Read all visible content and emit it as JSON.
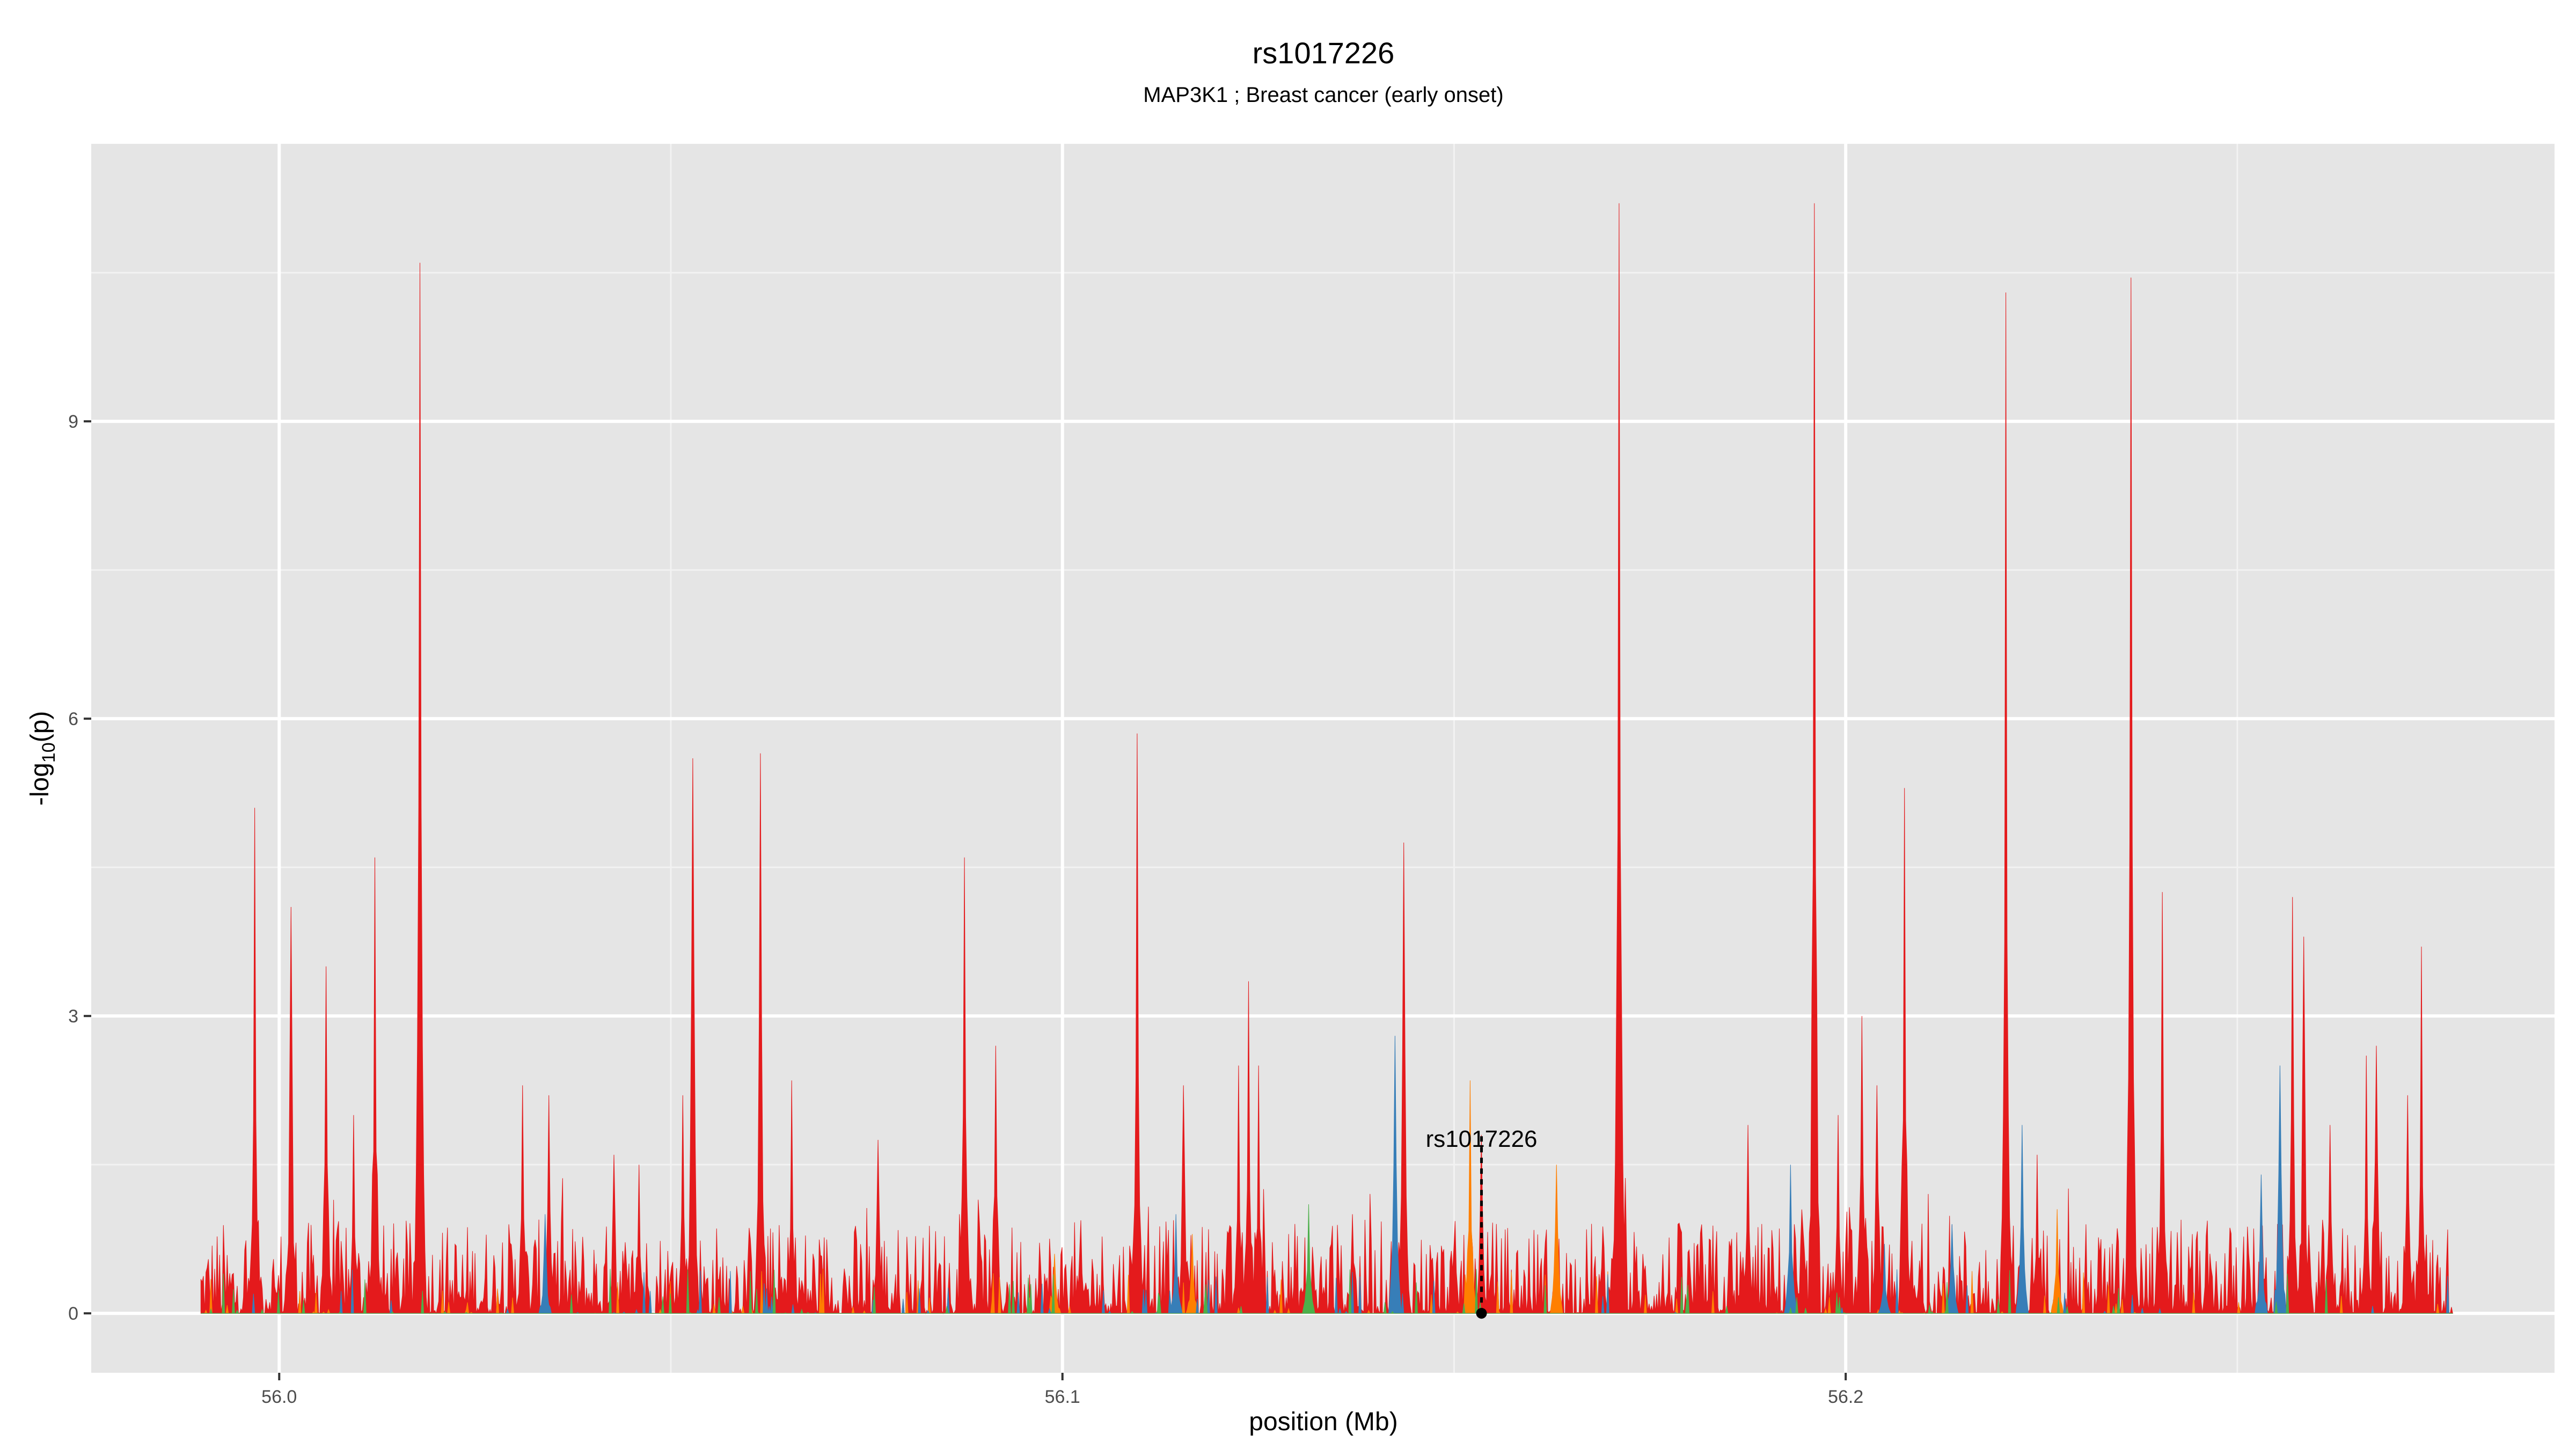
{
  "chart_data": {
    "type": "area",
    "title": "rs1017226",
    "subtitle": "MAP3K1 ; Breast cancer (early onset)",
    "xlabel": "position (Mb)",
    "ylabel_base": "-log",
    "ylabel_sub": "10",
    "ylabel_tail": "(p)",
    "xlim": [
      55.976,
      56.2905
    ],
    "ylim": [
      -0.6,
      11.8
    ],
    "x_ticks": [
      56.0,
      56.1,
      56.2
    ],
    "x_tick_labels": [
      "56.0",
      "56.1",
      "56.2"
    ],
    "x_minor_ticks": [
      56.05,
      56.15,
      56.25
    ],
    "y_ticks": [
      0,
      3,
      6,
      9
    ],
    "y_tick_labels": [
      "0",
      "3",
      "6",
      "9"
    ],
    "y_minor_ticks": [
      1.5,
      4.5,
      7.5,
      10.5
    ],
    "x_range": [
      55.99,
      56.2775
    ],
    "grid": true,
    "background_color": "#e5e5e5",
    "series": [
      {
        "color": "#e41a1c",
        "peaks": [
          [
            55.9968,
            5.1
          ],
          [
            56.0015,
            4.1
          ],
          [
            56.006,
            3.5
          ],
          [
            56.0095,
            2.0
          ],
          [
            56.0122,
            4.6
          ],
          [
            56.018,
            10.6
          ],
          [
            56.031,
            2.3
          ],
          [
            56.0345,
            2.2
          ],
          [
            56.0427,
            1.6
          ],
          [
            56.046,
            1.5
          ],
          [
            56.0515,
            2.2
          ],
          [
            56.0528,
            5.6
          ],
          [
            56.0615,
            5.65
          ],
          [
            56.0655,
            2.35
          ],
          [
            56.0765,
            1.75
          ],
          [
            56.0875,
            4.6
          ],
          [
            56.0915,
            2.7
          ],
          [
            56.1095,
            5.85
          ],
          [
            56.1155,
            2.3
          ],
          [
            56.1225,
            2.5
          ],
          [
            56.1238,
            3.35
          ],
          [
            56.125,
            2.5
          ],
          [
            56.137,
            1.0
          ],
          [
            56.1435,
            4.75
          ],
          [
            56.1535,
            1.8
          ],
          [
            56.171,
            11.2
          ],
          [
            56.1875,
            1.9
          ],
          [
            56.199,
            2.0
          ],
          [
            56.196,
            11.2
          ],
          [
            56.202,
            3.0
          ],
          [
            56.204,
            2.3
          ],
          [
            56.2075,
            5.3
          ],
          [
            56.2205,
            10.3
          ],
          [
            56.2245,
            1.6
          ],
          [
            56.2365,
            10.45
          ],
          [
            56.2405,
            4.25
          ],
          [
            56.257,
            4.2
          ],
          [
            56.2585,
            3.8
          ],
          [
            56.2618,
            1.9
          ],
          [
            56.2665,
            2.6
          ],
          [
            56.2678,
            2.7
          ],
          [
            56.2718,
            2.2
          ],
          [
            56.2735,
            3.7
          ]
        ]
      },
      {
        "color": "#ff7f00",
        "peaks": [
          [
            56.152,
            2.35
          ],
          [
            56.163,
            1.5
          ],
          [
            56.1165,
            0.8
          ],
          [
            56.227,
            1.05
          ],
          [
            56.099,
            0.6
          ]
        ]
      },
      {
        "color": "#377eb8",
        "peaks": [
          [
            56.1425,
            2.8
          ],
          [
            56.193,
            1.5
          ],
          [
            56.2225,
            1.9
          ],
          [
            56.2555,
            2.5
          ],
          [
            56.034,
            1.0
          ],
          [
            56.1145,
            1.0
          ],
          [
            56.205,
            0.7
          ],
          [
            56.253,
            1.4
          ],
          [
            56.2135,
            0.9
          ]
        ]
      },
      {
        "color": "#4daf4a",
        "peaks": [
          [
            56.1315,
            1.1
          ]
        ]
      }
    ],
    "lead_snp": {
      "label": "rs1017226",
      "x": 56.1535,
      "y": 0,
      "line_top": 1.8
    }
  }
}
